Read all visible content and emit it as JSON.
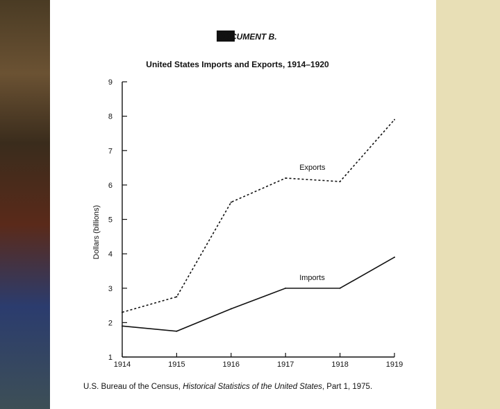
{
  "document_label": "DOCUMENT B.",
  "source": {
    "prefix": "U.S. Bureau of the Census, ",
    "title": "Historical Statistics of the United States",
    "suffix": ", Part 1, 1975."
  },
  "chart_data": {
    "type": "line",
    "title": "United States Imports and Exports, 1914–1920",
    "xlabel": "",
    "ylabel": "Dollars (billions)",
    "x": [
      1914,
      1915,
      1916,
      1917,
      1918,
      1919
    ],
    "xlim": [
      1914,
      1919
    ],
    "ylim": [
      1,
      9
    ],
    "yticks": [
      1,
      2,
      3,
      4,
      5,
      6,
      7,
      8,
      9
    ],
    "grid": false,
    "series": [
      {
        "name": "Exports",
        "style": "dashed",
        "values": [
          2.3,
          2.75,
          5.5,
          6.2,
          6.1,
          7.9
        ]
      },
      {
        "name": "Imports",
        "style": "solid",
        "values": [
          1.9,
          1.75,
          2.4,
          3.0,
          3.0,
          3.9
        ]
      }
    ]
  }
}
